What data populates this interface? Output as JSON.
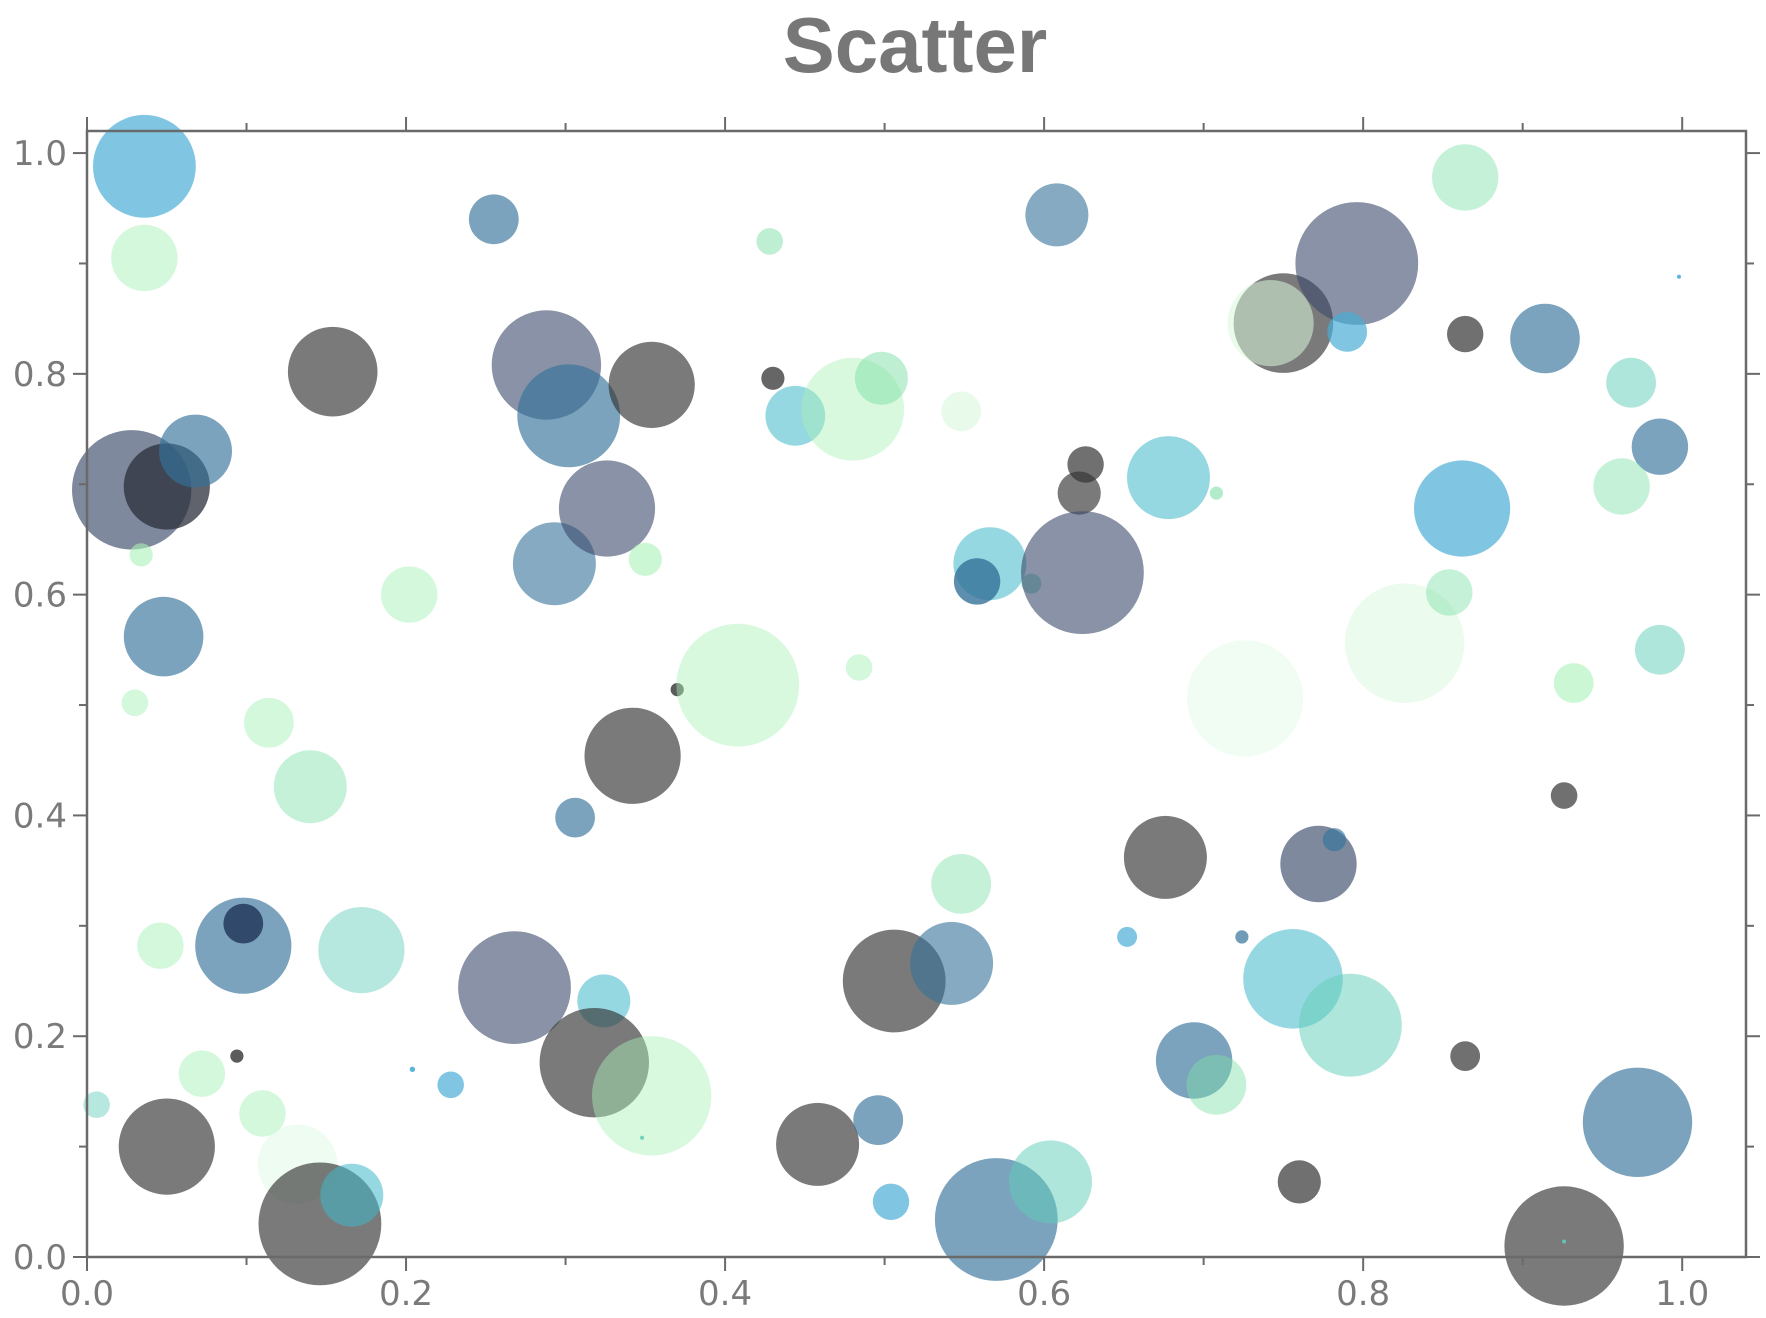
{
  "chart_data": {
    "type": "scatter",
    "title": "Scatter",
    "xlabel": "",
    "ylabel": "",
    "xlim": [
      0.0,
      1.04
    ],
    "ylim": [
      0.0,
      1.02
    ],
    "x_ticks": [
      "0.0",
      "0.2",
      "0.4",
      "0.6",
      "0.8",
      "1.0"
    ],
    "y_ticks": [
      "0.0",
      "0.2",
      "0.4",
      "0.6",
      "0.8",
      "1.0"
    ],
    "grid": false,
    "legend": "none",
    "palette": {
      "sky": "#4aaed6",
      "steel": "#34729a",
      "navy": "#1f3358",
      "slate": "#3a4a6a",
      "gray": "#333333",
      "charcoal": "#2b2f3a",
      "cyan": "#3fb8c8",
      "teal": "#5fcdb8",
      "mint": "#7ee0a8",
      "pale": "#aaf2b8",
      "faint": "#d8f8dc"
    },
    "points": [
      {
        "x": 0.036,
        "y": 0.988,
        "r": 0.031,
        "color": "sky",
        "alpha": 0.7
      },
      {
        "x": 0.036,
        "y": 0.905,
        "r": 0.02,
        "color": "pale",
        "alpha": 0.5
      },
      {
        "x": 0.255,
        "y": 0.94,
        "r": 0.015,
        "color": "steel",
        "alpha": 0.65
      },
      {
        "x": 0.154,
        "y": 0.802,
        "r": 0.027,
        "color": "gray",
        "alpha": 0.65
      },
      {
        "x": 0.288,
        "y": 0.808,
        "r": 0.033,
        "color": "slate",
        "alpha": 0.6
      },
      {
        "x": 0.302,
        "y": 0.762,
        "r": 0.031,
        "color": "steel",
        "alpha": 0.65
      },
      {
        "x": 0.354,
        "y": 0.79,
        "r": 0.026,
        "color": "gray",
        "alpha": 0.65
      },
      {
        "x": 0.428,
        "y": 0.92,
        "r": 0.008,
        "color": "mint",
        "alpha": 0.5
      },
      {
        "x": 0.43,
        "y": 0.796,
        "r": 0.007,
        "color": "gray",
        "alpha": 0.75
      },
      {
        "x": 0.444,
        "y": 0.762,
        "r": 0.018,
        "color": "cyan",
        "alpha": 0.55
      },
      {
        "x": 0.48,
        "y": 0.768,
        "r": 0.031,
        "color": "pale",
        "alpha": 0.45
      },
      {
        "x": 0.498,
        "y": 0.796,
        "r": 0.016,
        "color": "mint",
        "alpha": 0.5
      },
      {
        "x": 0.548,
        "y": 0.766,
        "r": 0.012,
        "color": "faint",
        "alpha": 0.6
      },
      {
        "x": 0.608,
        "y": 0.944,
        "r": 0.019,
        "color": "steel",
        "alpha": 0.6
      },
      {
        "x": 0.75,
        "y": 0.846,
        "r": 0.03,
        "color": "gray",
        "alpha": 0.65
      },
      {
        "x": 0.742,
        "y": 0.846,
        "r": 0.026,
        "color": "faint",
        "alpha": 0.55
      },
      {
        "x": 0.796,
        "y": 0.9,
        "r": 0.037,
        "color": "slate",
        "alpha": 0.6
      },
      {
        "x": 0.79,
        "y": 0.838,
        "r": 0.012,
        "color": "sky",
        "alpha": 0.7
      },
      {
        "x": 0.864,
        "y": 0.978,
        "r": 0.02,
        "color": "mint",
        "alpha": 0.45
      },
      {
        "x": 0.864,
        "y": 0.836,
        "r": 0.011,
        "color": "gray",
        "alpha": 0.7
      },
      {
        "x": 0.914,
        "y": 0.832,
        "r": 0.021,
        "color": "steel",
        "alpha": 0.65
      },
      {
        "x": 0.998,
        "y": 0.888,
        "r": 0.0012,
        "color": "sky",
        "alpha": 0.9
      },
      {
        "x": 0.968,
        "y": 0.792,
        "r": 0.015,
        "color": "teal",
        "alpha": 0.5
      },
      {
        "x": 0.986,
        "y": 0.734,
        "r": 0.017,
        "color": "steel",
        "alpha": 0.65
      },
      {
        "x": 0.962,
        "y": 0.698,
        "r": 0.017,
        "color": "mint",
        "alpha": 0.45
      },
      {
        "x": 0.028,
        "y": 0.695,
        "r": 0.036,
        "color": "slate",
        "alpha": 0.65
      },
      {
        "x": 0.05,
        "y": 0.698,
        "r": 0.026,
        "color": "charcoal",
        "alpha": 0.75
      },
      {
        "x": 0.068,
        "y": 0.73,
        "r": 0.022,
        "color": "steel",
        "alpha": 0.65
      },
      {
        "x": 0.034,
        "y": 0.636,
        "r": 0.007,
        "color": "pale",
        "alpha": 0.6
      },
      {
        "x": 0.048,
        "y": 0.562,
        "r": 0.024,
        "color": "steel",
        "alpha": 0.65
      },
      {
        "x": 0.03,
        "y": 0.502,
        "r": 0.008,
        "color": "pale",
        "alpha": 0.5
      },
      {
        "x": 0.114,
        "y": 0.484,
        "r": 0.015,
        "color": "pale",
        "alpha": 0.5
      },
      {
        "x": 0.14,
        "y": 0.426,
        "r": 0.022,
        "color": "mint",
        "alpha": 0.45
      },
      {
        "x": 0.202,
        "y": 0.6,
        "r": 0.017,
        "color": "pale",
        "alpha": 0.5
      },
      {
        "x": 0.293,
        "y": 0.628,
        "r": 0.025,
        "color": "steel",
        "alpha": 0.6
      },
      {
        "x": 0.326,
        "y": 0.678,
        "r": 0.029,
        "color": "slate",
        "alpha": 0.6
      },
      {
        "x": 0.35,
        "y": 0.632,
        "r": 0.01,
        "color": "pale",
        "alpha": 0.6
      },
      {
        "x": 0.37,
        "y": 0.514,
        "r": 0.004,
        "color": "gray",
        "alpha": 0.8
      },
      {
        "x": 0.408,
        "y": 0.518,
        "r": 0.037,
        "color": "pale",
        "alpha": 0.45
      },
      {
        "x": 0.484,
        "y": 0.534,
        "r": 0.008,
        "color": "pale",
        "alpha": 0.5
      },
      {
        "x": 0.342,
        "y": 0.454,
        "r": 0.029,
        "color": "gray",
        "alpha": 0.65
      },
      {
        "x": 0.306,
        "y": 0.398,
        "r": 0.012,
        "color": "steel",
        "alpha": 0.65
      },
      {
        "x": 0.566,
        "y": 0.628,
        "r": 0.022,
        "color": "cyan",
        "alpha": 0.55
      },
      {
        "x": 0.558,
        "y": 0.612,
        "r": 0.014,
        "color": "steel",
        "alpha": 0.8
      },
      {
        "x": 0.592,
        "y": 0.61,
        "r": 0.006,
        "color": "teal",
        "alpha": 0.55
      },
      {
        "x": 0.626,
        "y": 0.718,
        "r": 0.011,
        "color": "gray",
        "alpha": 0.7
      },
      {
        "x": 0.622,
        "y": 0.692,
        "r": 0.013,
        "color": "gray",
        "alpha": 0.65
      },
      {
        "x": 0.624,
        "y": 0.62,
        "r": 0.037,
        "color": "slate",
        "alpha": 0.6
      },
      {
        "x": 0.678,
        "y": 0.706,
        "r": 0.025,
        "color": "cyan",
        "alpha": 0.55
      },
      {
        "x": 0.708,
        "y": 0.692,
        "r": 0.004,
        "color": "mint",
        "alpha": 0.6
      },
      {
        "x": 0.726,
        "y": 0.506,
        "r": 0.035,
        "color": "faint",
        "alpha": 0.35
      },
      {
        "x": 0.826,
        "y": 0.556,
        "r": 0.036,
        "color": "faint",
        "alpha": 0.5
      },
      {
        "x": 0.854,
        "y": 0.602,
        "r": 0.014,
        "color": "mint",
        "alpha": 0.45
      },
      {
        "x": 0.862,
        "y": 0.678,
        "r": 0.029,
        "color": "sky",
        "alpha": 0.7
      },
      {
        "x": 0.932,
        "y": 0.52,
        "r": 0.012,
        "color": "pale",
        "alpha": 0.6
      },
      {
        "x": 0.986,
        "y": 0.55,
        "r": 0.015,
        "color": "teal",
        "alpha": 0.5
      },
      {
        "x": 0.926,
        "y": 0.418,
        "r": 0.008,
        "color": "gray",
        "alpha": 0.7
      },
      {
        "x": 0.098,
        "y": 0.282,
        "r": 0.029,
        "color": "steel",
        "alpha": 0.65
      },
      {
        "x": 0.098,
        "y": 0.302,
        "r": 0.012,
        "color": "navy",
        "alpha": 0.8
      },
      {
        "x": 0.046,
        "y": 0.282,
        "r": 0.014,
        "color": "pale",
        "alpha": 0.5
      },
      {
        "x": 0.172,
        "y": 0.278,
        "r": 0.026,
        "color": "teal",
        "alpha": 0.45
      },
      {
        "x": 0.268,
        "y": 0.244,
        "r": 0.034,
        "color": "slate",
        "alpha": 0.6
      },
      {
        "x": 0.324,
        "y": 0.232,
        "r": 0.016,
        "color": "cyan",
        "alpha": 0.55
      },
      {
        "x": 0.318,
        "y": 0.176,
        "r": 0.033,
        "color": "gray",
        "alpha": 0.65
      },
      {
        "x": 0.354,
        "y": 0.146,
        "r": 0.036,
        "color": "pale",
        "alpha": 0.45
      },
      {
        "x": 0.348,
        "y": 0.108,
        "r": 0.0012,
        "color": "teal",
        "alpha": 0.9
      },
      {
        "x": 0.094,
        "y": 0.182,
        "r": 0.004,
        "color": "gray",
        "alpha": 0.8
      },
      {
        "x": 0.072,
        "y": 0.166,
        "r": 0.014,
        "color": "pale",
        "alpha": 0.5
      },
      {
        "x": 0.006,
        "y": 0.138,
        "r": 0.008,
        "color": "teal",
        "alpha": 0.45
      },
      {
        "x": 0.11,
        "y": 0.13,
        "r": 0.014,
        "color": "pale",
        "alpha": 0.5
      },
      {
        "x": 0.05,
        "y": 0.1,
        "r": 0.029,
        "color": "gray",
        "alpha": 0.65
      },
      {
        "x": 0.132,
        "y": 0.084,
        "r": 0.024,
        "color": "faint",
        "alpha": 0.4
      },
      {
        "x": 0.146,
        "y": 0.03,
        "r": 0.037,
        "color": "gray",
        "alpha": 0.65
      },
      {
        "x": 0.166,
        "y": 0.056,
        "r": 0.019,
        "color": "cyan",
        "alpha": 0.55
      },
      {
        "x": 0.204,
        "y": 0.17,
        "r": 0.0016,
        "color": "sky",
        "alpha": 0.9
      },
      {
        "x": 0.228,
        "y": 0.156,
        "r": 0.008,
        "color": "sky",
        "alpha": 0.7
      },
      {
        "x": 0.506,
        "y": 0.25,
        "r": 0.031,
        "color": "gray",
        "alpha": 0.65
      },
      {
        "x": 0.542,
        "y": 0.266,
        "r": 0.025,
        "color": "steel",
        "alpha": 0.6
      },
      {
        "x": 0.548,
        "y": 0.338,
        "r": 0.018,
        "color": "mint",
        "alpha": 0.45
      },
      {
        "x": 0.458,
        "y": 0.102,
        "r": 0.025,
        "color": "gray",
        "alpha": 0.65
      },
      {
        "x": 0.496,
        "y": 0.124,
        "r": 0.015,
        "color": "steel",
        "alpha": 0.65
      },
      {
        "x": 0.504,
        "y": 0.05,
        "r": 0.011,
        "color": "sky",
        "alpha": 0.7
      },
      {
        "x": 0.57,
        "y": 0.034,
        "r": 0.037,
        "color": "steel",
        "alpha": 0.65
      },
      {
        "x": 0.604,
        "y": 0.068,
        "r": 0.025,
        "color": "teal",
        "alpha": 0.5
      },
      {
        "x": 0.676,
        "y": 0.362,
        "r": 0.025,
        "color": "gray",
        "alpha": 0.65
      },
      {
        "x": 0.652,
        "y": 0.29,
        "r": 0.006,
        "color": "sky",
        "alpha": 0.7
      },
      {
        "x": 0.724,
        "y": 0.29,
        "r": 0.004,
        "color": "steel",
        "alpha": 0.7
      },
      {
        "x": 0.694,
        "y": 0.178,
        "r": 0.023,
        "color": "steel",
        "alpha": 0.65
      },
      {
        "x": 0.708,
        "y": 0.156,
        "r": 0.018,
        "color": "mint",
        "alpha": 0.45
      },
      {
        "x": 0.756,
        "y": 0.252,
        "r": 0.03,
        "color": "cyan",
        "alpha": 0.55
      },
      {
        "x": 0.792,
        "y": 0.21,
        "r": 0.031,
        "color": "teal",
        "alpha": 0.5
      },
      {
        "x": 0.772,
        "y": 0.356,
        "r": 0.023,
        "color": "slate",
        "alpha": 0.65
      },
      {
        "x": 0.782,
        "y": 0.378,
        "r": 0.007,
        "color": "steel",
        "alpha": 0.65
      },
      {
        "x": 0.76,
        "y": 0.068,
        "r": 0.013,
        "color": "gray",
        "alpha": 0.7
      },
      {
        "x": 0.864,
        "y": 0.182,
        "r": 0.009,
        "color": "gray",
        "alpha": 0.7
      },
      {
        "x": 0.926,
        "y": 0.01,
        "r": 0.036,
        "color": "gray",
        "alpha": 0.65
      },
      {
        "x": 0.926,
        "y": 0.014,
        "r": 0.0012,
        "color": "teal",
        "alpha": 0.9
      },
      {
        "x": 0.972,
        "y": 0.122,
        "r": 0.033,
        "color": "steel",
        "alpha": 0.65
      }
    ]
  }
}
